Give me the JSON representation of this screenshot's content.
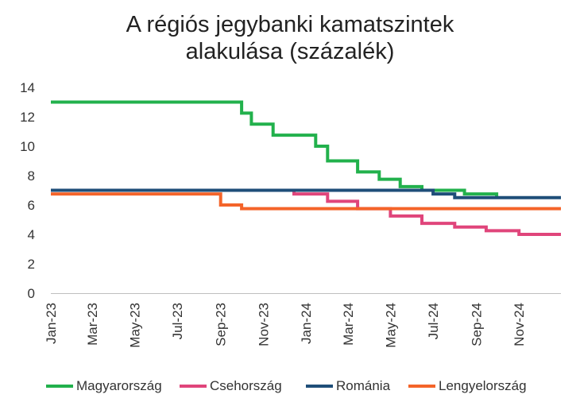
{
  "chart_data": {
    "type": "line",
    "title_line1": "A régiós jegybanki kamatszintek",
    "title_line2": "alakulása (százalék)",
    "xlabel": "",
    "ylabel": "",
    "x_start": "2023-01",
    "x_end": "2024-12",
    "x_ticks": [
      "Jan-23",
      "Mar-23",
      "May-23",
      "Jul-23",
      "Sep-23",
      "Nov-23",
      "Jan-24",
      "Mar-24",
      "May-24",
      "Jul-24",
      "Sep-24",
      "Nov-24"
    ],
    "y_ticks": [
      "0",
      "2",
      "4",
      "6",
      "8",
      "10",
      "12",
      "14"
    ],
    "ylim": [
      0,
      14
    ],
    "grid": false,
    "legend_position": "bottom",
    "series": [
      {
        "name": "Magyarország",
        "color": "#22B14C",
        "points": [
          [
            "2023-01-01",
            13.0
          ],
          [
            "2023-10-01",
            12.25
          ],
          [
            "2023-10-15",
            11.5
          ],
          [
            "2023-11-15",
            10.75
          ],
          [
            "2023-12-15",
            10.75
          ],
          [
            "2024-01-01",
            10.75
          ],
          [
            "2024-01-15",
            10.0
          ],
          [
            "2024-02-01",
            9.0
          ],
          [
            "2024-03-01",
            9.0
          ],
          [
            "2024-03-15",
            8.25
          ],
          [
            "2024-04-15",
            7.75
          ],
          [
            "2024-05-15",
            7.25
          ],
          [
            "2024-06-15",
            7.0
          ],
          [
            "2024-07-15",
            7.0
          ],
          [
            "2024-08-15",
            6.75
          ],
          [
            "2024-09-30",
            6.5
          ]
        ]
      },
      {
        "name": "Csehország",
        "color": "#E0457B",
        "points": [
          [
            "2023-01-01",
            7.0
          ],
          [
            "2023-12-15",
            6.75
          ],
          [
            "2024-02-01",
            6.25
          ],
          [
            "2024-03-15",
            5.75
          ],
          [
            "2024-05-01",
            5.25
          ],
          [
            "2024-06-15",
            4.75
          ],
          [
            "2024-08-01",
            4.5
          ],
          [
            "2024-09-15",
            4.25
          ],
          [
            "2024-11-01",
            4.0
          ],
          [
            "2024-12-31",
            4.0
          ]
        ]
      },
      {
        "name": "Románia",
        "color": "#1F4E79",
        "points": [
          [
            "2023-01-01",
            7.0
          ],
          [
            "2024-07-01",
            6.75
          ],
          [
            "2024-08-01",
            6.5
          ],
          [
            "2024-12-31",
            6.5
          ]
        ]
      },
      {
        "name": "Lengyelország",
        "color": "#F4642A",
        "points": [
          [
            "2023-01-01",
            6.75
          ],
          [
            "2023-09-01",
            6.0
          ],
          [
            "2023-10-01",
            5.75
          ],
          [
            "2024-12-31",
            5.75
          ]
        ]
      }
    ]
  }
}
